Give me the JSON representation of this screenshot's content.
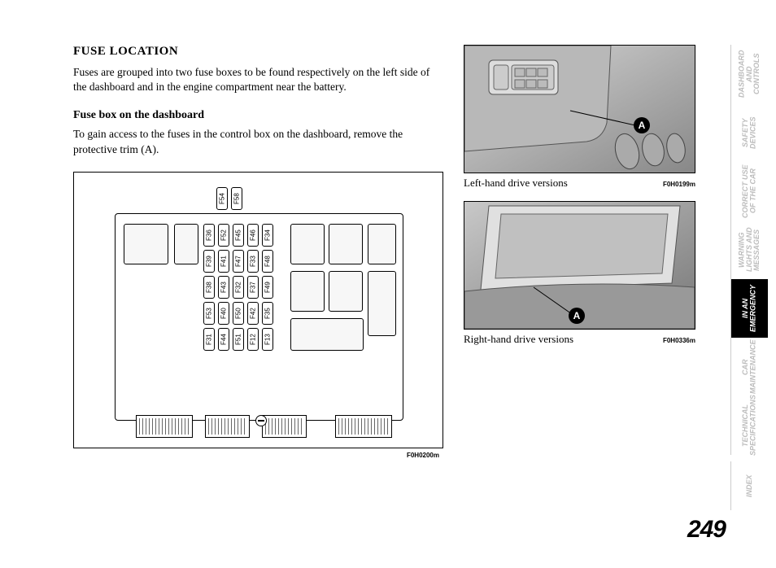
{
  "page_number": "249",
  "headings": {
    "main": "FUSE LOCATION",
    "sub": "Fuse box on the dashboard"
  },
  "paragraphs": {
    "intro": "Fuses are grouped into two fuse boxes to be found respectively on the left side of the dashboard and in the engine compartment near the battery.",
    "access": "To gain access to the fuses in the control box on the dashboard, remove the protective trim (A)."
  },
  "captions": {
    "left_hand": "Left-hand drive versions",
    "right_hand": "Right-hand drive versions"
  },
  "figure_codes": {
    "fuse_diagram": "F0H0200m",
    "photo_left": "F0H0199m",
    "photo_right": "F0H0336m"
  },
  "callout_label": "A",
  "fuse_labels_top": [
    "F54",
    "F58"
  ],
  "fuse_labels_row1": [
    "F36",
    "F52",
    "F45",
    "F46",
    "F34"
  ],
  "fuse_labels_row2": [
    "F39",
    "F41",
    "F47",
    "F33",
    "F48"
  ],
  "fuse_labels_row3": [
    "F38",
    "F43",
    "F32",
    "F37",
    "F49"
  ],
  "fuse_labels_row4": [
    "F53",
    "F40",
    "F50",
    "F42",
    "F35"
  ],
  "fuse_labels_row5": [
    "F31",
    "F44",
    "F51",
    "F12",
    "F13"
  ],
  "side_tabs": [
    {
      "label": "DASHBOARD AND CONTROLS",
      "active": false
    },
    {
      "label": "SAFETY DEVICES",
      "active": false
    },
    {
      "label": "CORRECT USE OF THE CAR",
      "active": false
    },
    {
      "label": "WARNING LIGHTS AND MESSAGES",
      "active": false
    },
    {
      "label": "IN AN EMERGENCY",
      "active": true
    },
    {
      "label": "CAR MAINTENANCE",
      "active": false
    },
    {
      "label": "TECHNICAL SPECIFICATIONS",
      "active": false
    },
    {
      "label": "INDEX",
      "active": false,
      "index": true
    }
  ],
  "colors": {
    "text": "#000000",
    "inactive_tab": "#bdbdbd",
    "active_tab_bg": "#000000",
    "active_tab_text": "#ffffff",
    "border": "#000000",
    "photo_bg": "#f0f0f0"
  }
}
